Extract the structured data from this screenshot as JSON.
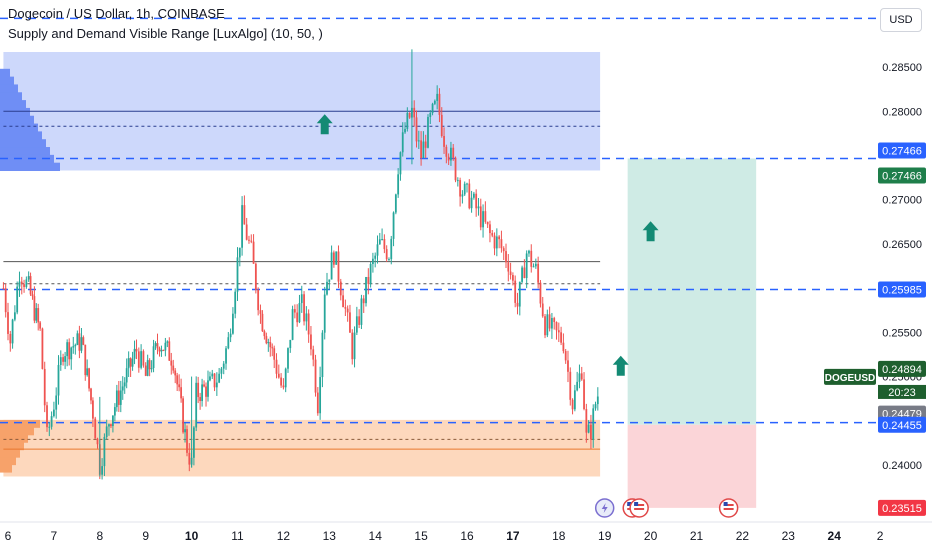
{
  "header": {
    "title": "Dogecoin / US Dollar, 1h, COINBASE",
    "indicator": "Supply and Demand Visible Range [LuxAlgo] (10, 50, )"
  },
  "currency_button": "USD",
  "symbol_badge": "DOGEUSD",
  "countdown": "20:23",
  "price_axis_ticks": [
    "0.28500",
    "0.28000",
    "0.27000",
    "0.26500",
    "0.25500",
    "0.25000",
    "0.24000"
  ],
  "price_labels": [
    {
      "price": 0.27466,
      "text": "0.27466",
      "bg": "#2962ff"
    },
    {
      "price": 0.27466,
      "text": "0.27466",
      "bg": "#1e7e4a"
    },
    {
      "price": 0.25985,
      "text": "0.25985",
      "bg": "#2962ff"
    },
    {
      "price": 0.24894,
      "text": "0.24894",
      "bg": "#1e5f2e"
    },
    {
      "price": 0.24479,
      "text": "0.24479",
      "bg": "#787b86"
    },
    {
      "price": 0.24455,
      "text": "0.24455",
      "bg": "#2962ff"
    },
    {
      "price": 0.23515,
      "text": "0.23515",
      "bg": "#f23645"
    }
  ],
  "time_axis": [
    {
      "day": 6,
      "label": "6",
      "bold": false
    },
    {
      "day": 7,
      "label": "7",
      "bold": false
    },
    {
      "day": 8,
      "label": "8",
      "bold": false
    },
    {
      "day": 9,
      "label": "9",
      "bold": false
    },
    {
      "day": 10,
      "label": "10",
      "bold": true
    },
    {
      "day": 11,
      "label": "11",
      "bold": false
    },
    {
      "day": 12,
      "label": "12",
      "bold": false
    },
    {
      "day": 13,
      "label": "13",
      "bold": false
    },
    {
      "day": 14,
      "label": "14",
      "bold": false
    },
    {
      "day": 15,
      "label": "15",
      "bold": false
    },
    {
      "day": 16,
      "label": "16",
      "bold": false
    },
    {
      "day": 17,
      "label": "17",
      "bold": true
    },
    {
      "day": 18,
      "label": "18",
      "bold": false
    },
    {
      "day": 19,
      "label": "19",
      "bold": false
    },
    {
      "day": 20,
      "label": "20",
      "bold": false
    },
    {
      "day": 21,
      "label": "21",
      "bold": false
    },
    {
      "day": 22,
      "label": "22",
      "bold": false
    },
    {
      "day": 23,
      "label": "23",
      "bold": false
    },
    {
      "day": 24,
      "label": "24",
      "bold": true
    },
    {
      "day": 25,
      "label": "2",
      "bold": false
    }
  ],
  "colors": {
    "up": "#26a69a",
    "down": "#ef5350",
    "level_line": "#2962ff",
    "supply_zone": "#cdd8fb",
    "supply_profile": "#6f8ef5",
    "demand_zone": "#fdd8bd",
    "demand_profile": "#f7a26a",
    "target_zone": "#cfebe5",
    "stop_zone": "#fbd5d8",
    "arrow": "#138a74"
  },
  "chart_data": {
    "type": "candlestick",
    "symbol": "DOGEUSD",
    "interval": "1h",
    "exchange": "COINBASE",
    "x_unit": "day of month (hourly candles)",
    "price_range": [
      0.2335,
      0.2905
    ],
    "levels": {
      "dashed_lines": [
        0.2905,
        0.27466,
        0.25985,
        0.24479
      ],
      "supply_zone": {
        "from_day": 5.9,
        "to_day": 18.9,
        "top": 0.2867,
        "bottom": 0.2733,
        "mid": 0.2783,
        "line": 0.28
      },
      "demand_zone": {
        "from_day": 5.9,
        "to_day": 18.9,
        "top": 0.2451,
        "bottom": 0.2387,
        "mid": 0.2429,
        "line": 0.2418
      },
      "equilibrium": {
        "line": 0.263,
        "dashed": 0.2605
      }
    },
    "position": {
      "entry": 0.24455,
      "target": 0.27466,
      "stop": 0.23515,
      "from_day": 19.5,
      "to_day": 22.3
    },
    "last_price": 0.24894,
    "arrows_up": [
      {
        "day": 12.9,
        "price": 0.2783
      },
      {
        "day": 20.0,
        "price": 0.2662
      },
      {
        "day": 19.35,
        "price": 0.251
      }
    ],
    "events_day": [
      19.0,
      19.6,
      19.75,
      21.7
    ],
    "anchor_ohlc": [
      [
        5.9,
        0.26
      ],
      [
        6.05,
        0.254
      ],
      [
        6.25,
        0.262
      ],
      [
        6.45,
        0.26
      ],
      [
        6.7,
        0.255
      ],
      [
        6.85,
        0.243
      ],
      [
        7.0,
        0.247
      ],
      [
        7.2,
        0.253
      ],
      [
        7.6,
        0.254
      ],
      [
        7.85,
        0.246
      ],
      [
        8.0,
        0.24
      ],
      [
        8.2,
        0.245
      ],
      [
        8.5,
        0.249
      ],
      [
        8.8,
        0.253
      ],
      [
        9.0,
        0.25
      ],
      [
        9.3,
        0.254
      ],
      [
        9.6,
        0.252
      ],
      [
        9.9,
        0.242
      ],
      [
        10.0,
        0.24
      ],
      [
        10.1,
        0.248
      ],
      [
        10.4,
        0.249
      ],
      [
        10.6,
        0.25
      ],
      [
        10.8,
        0.254
      ],
      [
        11.0,
        0.263
      ],
      [
        11.1,
        0.268
      ],
      [
        11.3,
        0.264
      ],
      [
        11.5,
        0.257
      ],
      [
        11.8,
        0.252
      ],
      [
        12.0,
        0.248
      ],
      [
        12.2,
        0.257
      ],
      [
        12.4,
        0.258
      ],
      [
        12.6,
        0.254
      ],
      [
        12.75,
        0.247
      ],
      [
        12.9,
        0.26
      ],
      [
        13.1,
        0.264
      ],
      [
        13.3,
        0.259
      ],
      [
        13.5,
        0.253
      ],
      [
        13.7,
        0.258
      ],
      [
        13.9,
        0.262
      ],
      [
        14.1,
        0.265
      ],
      [
        14.3,
        0.264
      ],
      [
        14.5,
        0.274
      ],
      [
        14.65,
        0.278
      ],
      [
        14.8,
        0.28
      ],
      [
        14.9,
        0.277
      ],
      [
        15.0,
        0.275
      ],
      [
        15.2,
        0.279
      ],
      [
        15.35,
        0.281
      ],
      [
        15.5,
        0.277
      ],
      [
        15.7,
        0.274
      ],
      [
        15.9,
        0.271
      ],
      [
        16.1,
        0.27
      ],
      [
        16.3,
        0.268
      ],
      [
        16.5,
        0.266
      ],
      [
        16.7,
        0.265
      ],
      [
        16.9,
        0.263
      ],
      [
        17.1,
        0.258
      ],
      [
        17.3,
        0.264
      ],
      [
        17.5,
        0.262
      ],
      [
        17.7,
        0.256
      ],
      [
        17.9,
        0.255
      ],
      [
        18.1,
        0.254
      ],
      [
        18.3,
        0.247
      ],
      [
        18.5,
        0.251
      ],
      [
        18.6,
        0.243
      ],
      [
        18.7,
        0.244
      ],
      [
        18.8,
        0.247
      ],
      [
        18.9,
        0.2489
      ]
    ]
  }
}
